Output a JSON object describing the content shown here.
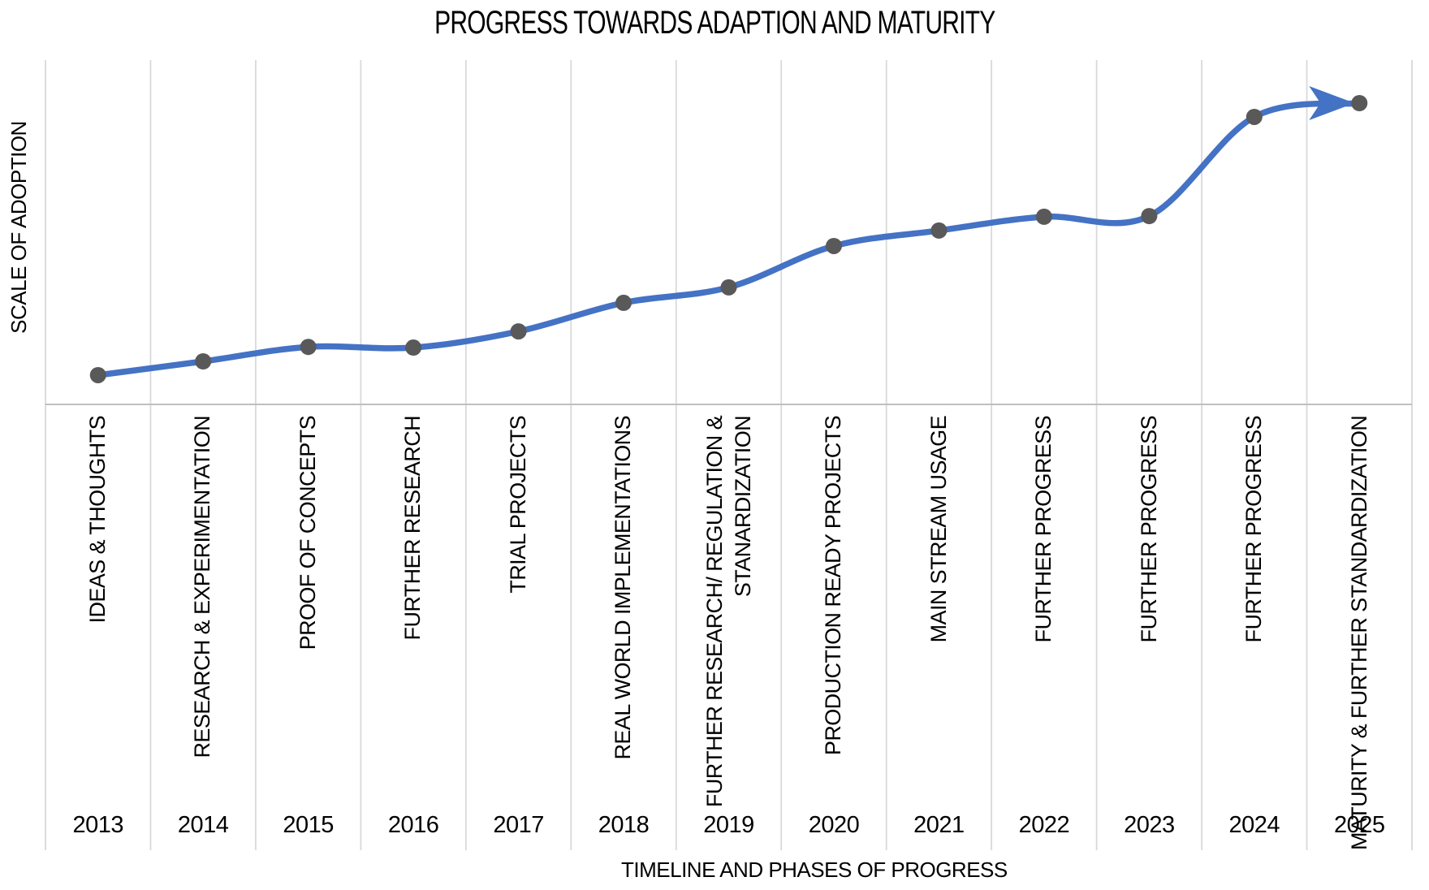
{
  "chart_data": {
    "type": "line",
    "title": "PROGRESS TOWARDS ADAPTION AND MATURITY",
    "xlabel": "TIMELINE AND PHASES OF PROGRESS",
    "ylabel": "SCALE OF ADOPTION",
    "categories": [
      "2013",
      "2014",
      "2015",
      "2016",
      "2017",
      "2018",
      "2019",
      "2020",
      "2021",
      "2022",
      "2023",
      "2024",
      "2025"
    ],
    "phases": [
      "IDEAS & THOUGHTS",
      "RESEARCH & EXPERIMENTATION",
      "PROOF OF CONCEPTS",
      "FURTHER RESEARCH",
      "TRIAL PROJECTS",
      "REAL WORLD IMPLEMENTATIONS",
      "FURTHER RESEARCH/ REGULATION &\nSTANARDIZATION",
      "PRODUCTION READY PROJECTS",
      "MAIN STREAM USAGE",
      "FURTHER PROGRESS",
      "FURTHER PROGRESS",
      "FURTHER PROGRESS",
      "MATURITY & FURTHER STANDARDIZATION"
    ],
    "series": [
      {
        "name": "Scale of adoption",
        "values": [
          8.5,
          12.5,
          16.7,
          16.5,
          21.2,
          29.5,
          34.0,
          46.0,
          50.5,
          54.5,
          54.7,
          83.5,
          87.5
        ]
      }
    ],
    "ylim": [
      0,
      100
    ],
    "grid": "vertical-only",
    "legend": "none",
    "smoothed": true,
    "end_arrow": true,
    "colors": {
      "line": "#4472C4",
      "marker": "#595959",
      "grid": "#D9D9D9",
      "axis": "#BFBFBF",
      "text": "#000000"
    }
  }
}
